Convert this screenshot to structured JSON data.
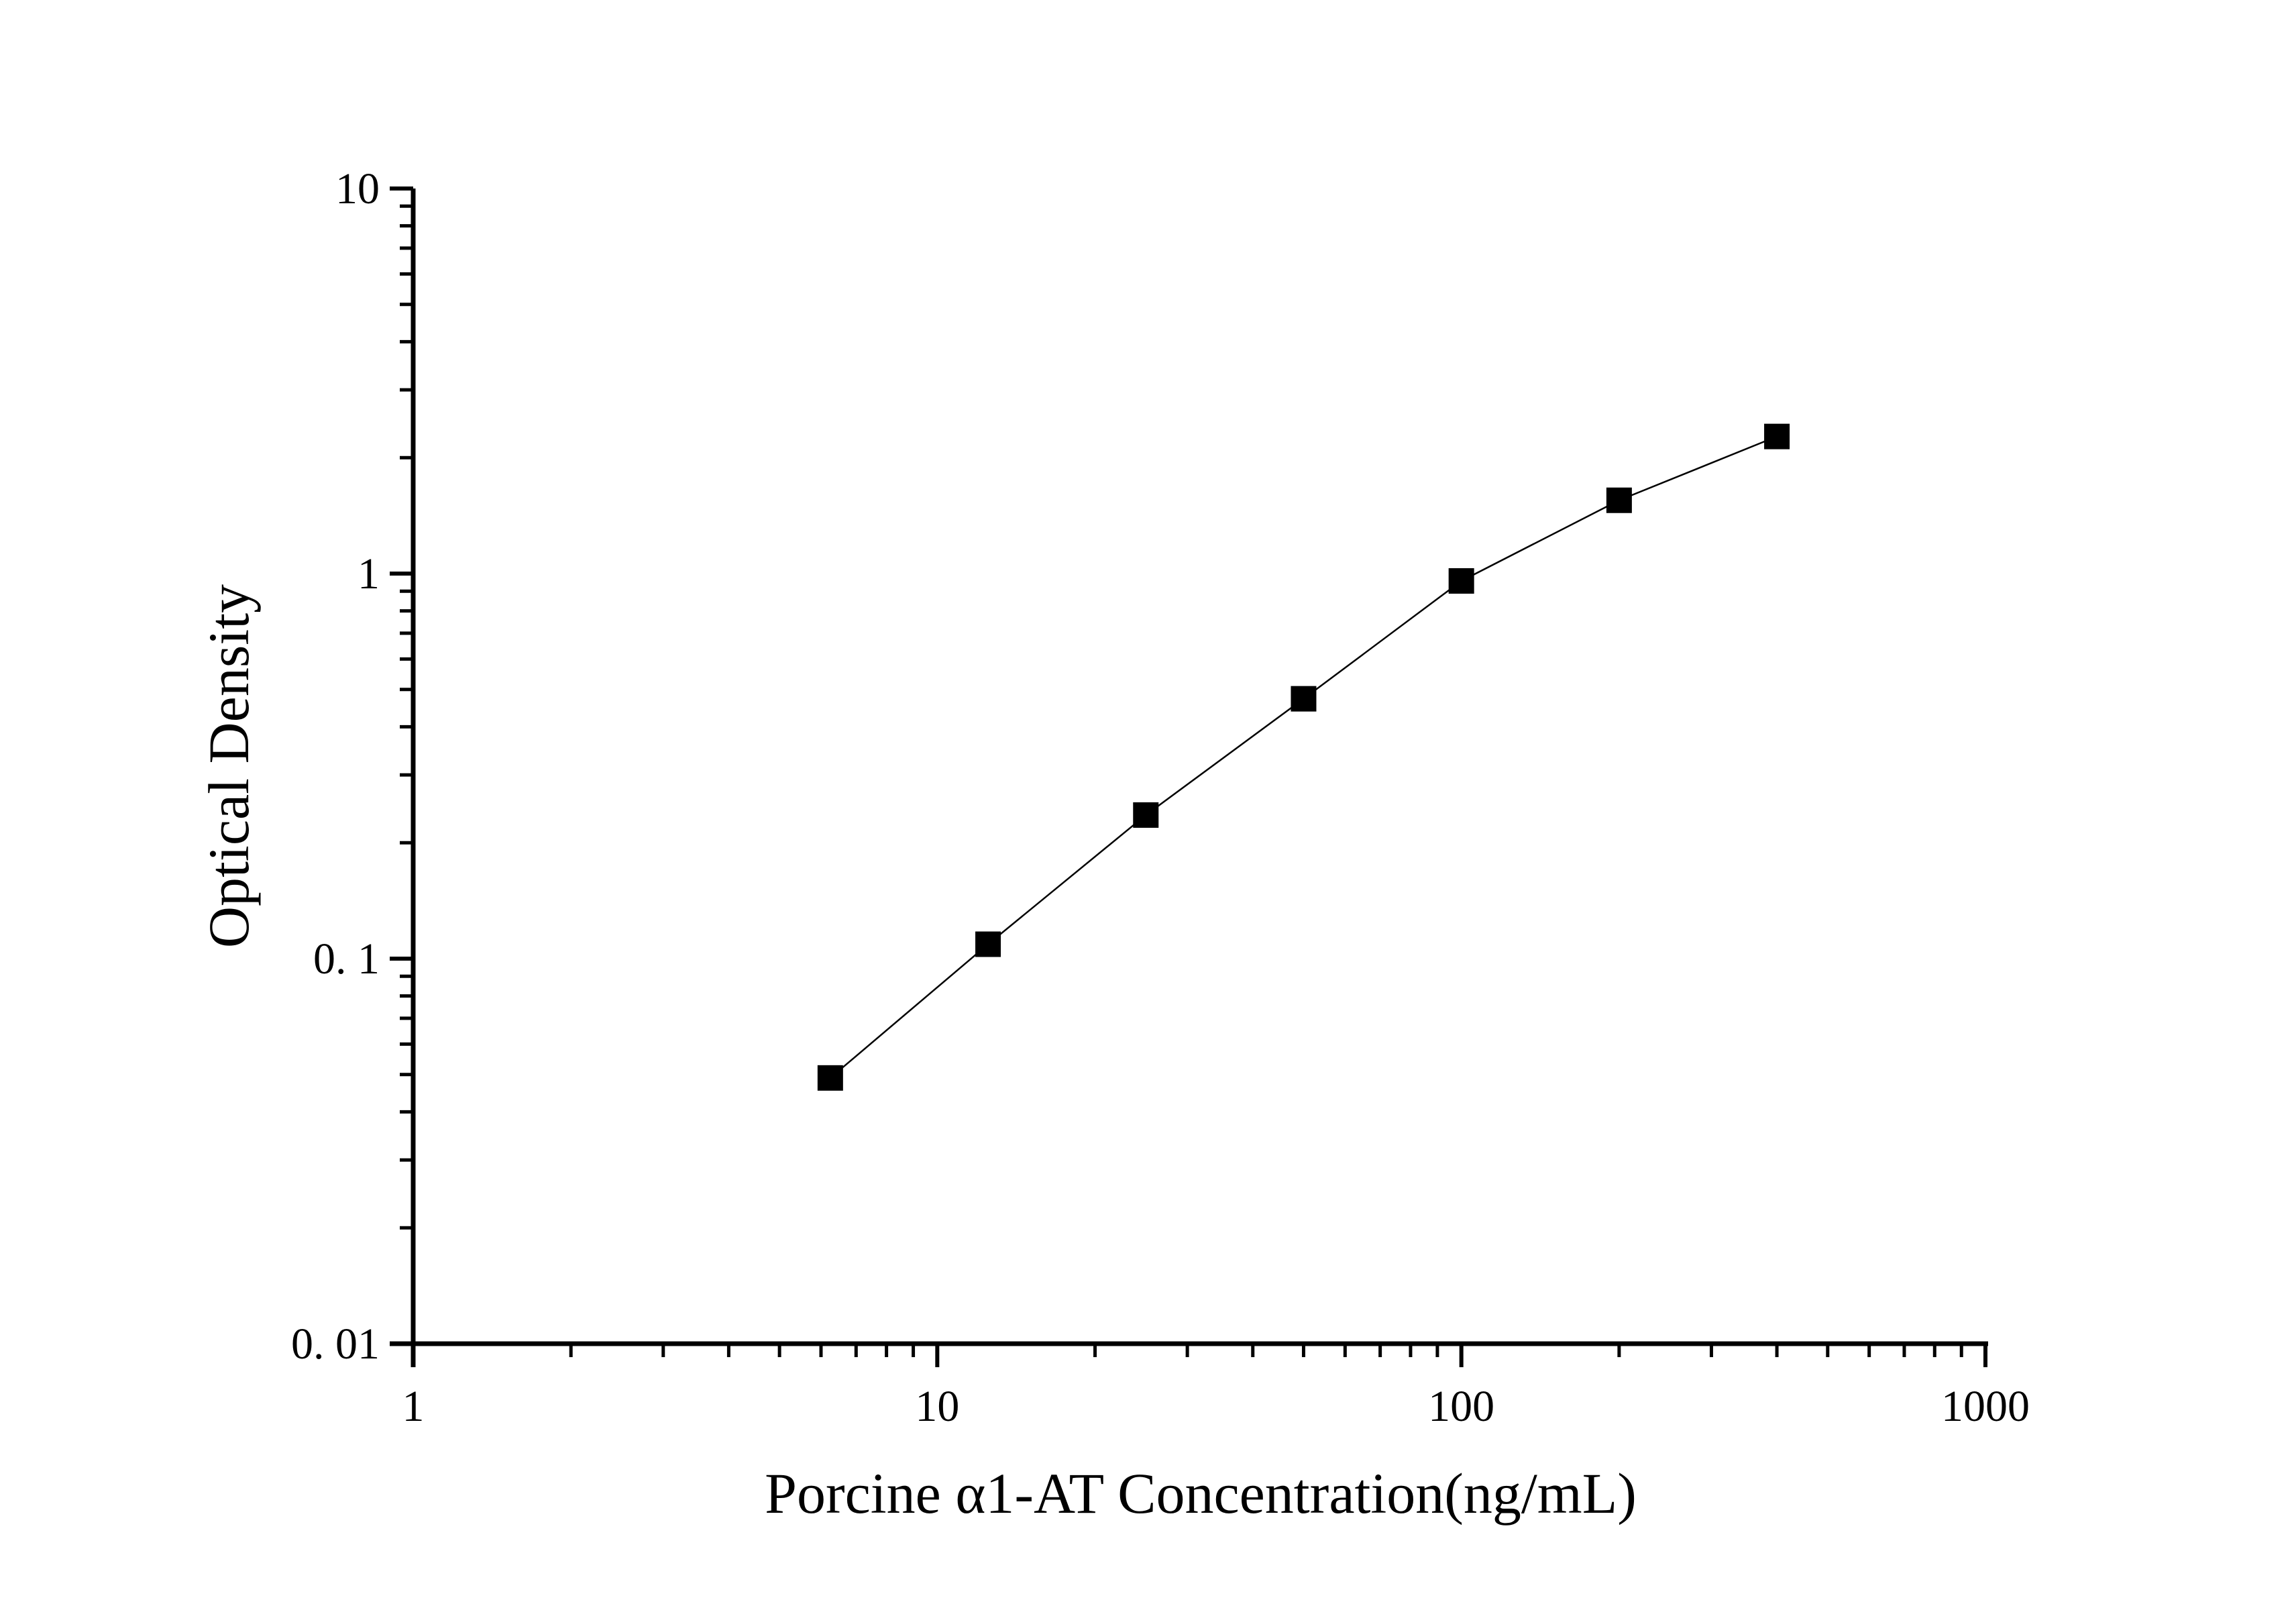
{
  "chart_data": {
    "type": "line",
    "title": "",
    "xlabel": "Porcine α1-AT Concentration(ng/mL)",
    "ylabel": "Optical Density",
    "x_scale": "log",
    "y_scale": "log",
    "xlim": [
      1,
      1000
    ],
    "ylim": [
      0.01,
      10
    ],
    "x_ticks": [
      1,
      10,
      100,
      1000
    ],
    "x_tick_labels": [
      "1",
      "10",
      "100",
      "1000"
    ],
    "y_ticks": [
      0.01,
      0.1,
      1,
      10
    ],
    "y_tick_labels": [
      "0. 01",
      "0. 1",
      "1",
      "10"
    ],
    "grid": false,
    "marker": "square",
    "color": "#000000",
    "series": [
      {
        "x": [
          6.25,
          12.5,
          25,
          50,
          100,
          200,
          400
        ],
        "y": [
          0.049,
          0.109,
          0.236,
          0.473,
          0.957,
          1.55,
          2.27
        ]
      }
    ]
  }
}
